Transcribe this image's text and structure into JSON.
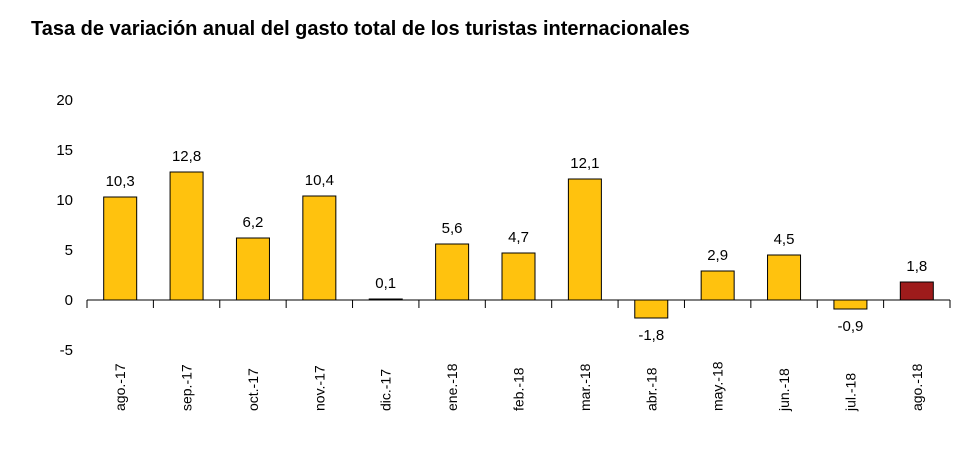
{
  "chart_data": {
    "type": "bar",
    "title": "Tasa de variación anual del gasto total de los turistas internacionales",
    "xlabel": "",
    "ylabel": "",
    "ylim": [
      -5,
      20
    ],
    "yticks": [
      -5,
      0,
      5,
      10,
      15,
      20
    ],
    "grid": false,
    "categories": [
      "ago.-17",
      "sep.-17",
      "oct.-17",
      "nov.-17",
      "dic.-17",
      "ene.-18",
      "feb.-18",
      "mar.-18",
      "abr.-18",
      "may.-18",
      "jun.-18",
      "jul.-18",
      "ago.-18"
    ],
    "values": [
      10.3,
      12.8,
      6.2,
      10.4,
      0.1,
      5.6,
      4.7,
      12.1,
      -1.8,
      2.9,
      4.5,
      -0.9,
      1.8
    ],
    "data_labels": [
      "10,3",
      "12,8",
      "6,2",
      "10,4",
      "0,1",
      "5,6",
      "4,7",
      "12,1",
      "-1,8",
      "2,9",
      "4,5",
      "-0,9",
      "1,8"
    ],
    "colors": {
      "bar": "#FFC20E",
      "highlight": "#9E1B1B",
      "outline": "#000000",
      "axis": "#000000"
    },
    "highlight_index": 12
  }
}
